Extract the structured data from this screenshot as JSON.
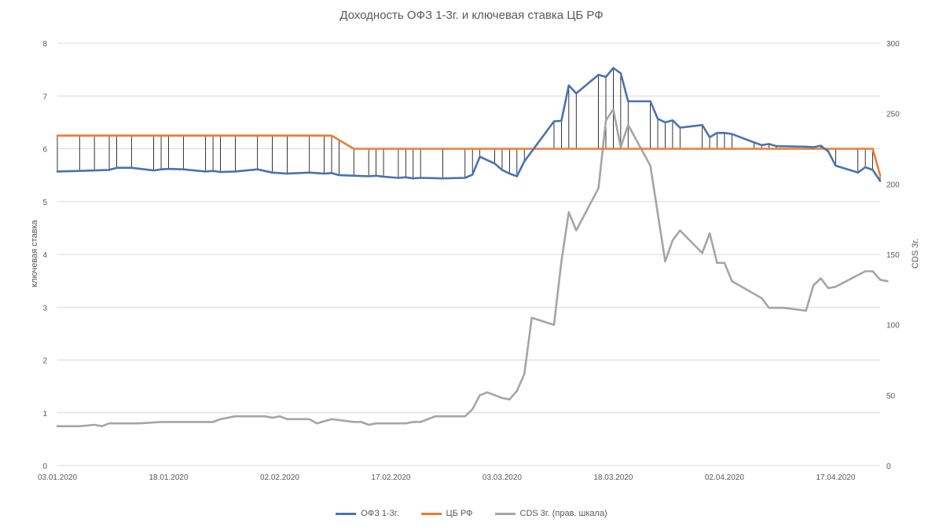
{
  "chart_data": {
    "type": "line",
    "title": "Доходность ОФЗ 1-3г. и ключевая ставка ЦБ РФ",
    "ylabel": "ключевая ставка",
    "y2label": "CDS 3г.",
    "ylim": [
      0,
      8
    ],
    "y2lim": [
      0,
      300
    ],
    "yticks": [
      "0",
      "1",
      "2",
      "3",
      "4",
      "5",
      "6",
      "7",
      "8"
    ],
    "y2ticks": [
      "0",
      "50",
      "100",
      "150",
      "200",
      "250",
      "300"
    ],
    "xticks": [
      "03.01.2020",
      "18.01.2020",
      "02.02.2020",
      "17.02.2020",
      "03.03.2020",
      "18.03.2020",
      "02.04.2020",
      "17.04.2020"
    ],
    "x_start": "03.01.2020",
    "x_end": "23.04.2020",
    "grid": "horizontal",
    "legend_position": "bottom",
    "colors": {
      "ofz": "#4a72b0",
      "cb": "#ed7d31",
      "cds": "#a5a5a5",
      "drop": "#000000",
      "grid": "#d9d9d9"
    },
    "series": [
      {
        "name": "ОФЗ 1-3г.",
        "axis": "left",
        "points": [
          [
            "03.01.2020",
            5.57
          ],
          [
            "06.01.2020",
            5.58
          ],
          [
            "08.01.2020",
            5.59
          ],
          [
            "10.01.2020",
            5.6
          ],
          [
            "11.01.2020",
            5.64
          ],
          [
            "13.01.2020",
            5.64
          ],
          [
            "16.01.2020",
            5.59
          ],
          [
            "17.01.2020",
            5.61
          ],
          [
            "18.01.2020",
            5.62
          ],
          [
            "20.01.2020",
            5.61
          ],
          [
            "23.01.2020",
            5.57
          ],
          [
            "24.01.2020",
            5.58
          ],
          [
            "25.01.2020",
            5.56
          ],
          [
            "27.01.2020",
            5.57
          ],
          [
            "30.01.2020",
            5.61
          ],
          [
            "01.02.2020",
            5.55
          ],
          [
            "03.02.2020",
            5.53
          ],
          [
            "06.02.2020",
            5.55
          ],
          [
            "08.02.2020",
            5.53
          ],
          [
            "09.02.2020",
            5.54
          ],
          [
            "10.02.2020",
            5.5
          ],
          [
            "12.02.2020",
            5.49
          ],
          [
            "14.02.2020",
            5.48
          ],
          [
            "15.02.2020",
            5.49
          ],
          [
            "16.02.2020",
            5.47
          ],
          [
            "18.02.2020",
            5.45
          ],
          [
            "19.02.2020",
            5.46
          ],
          [
            "20.02.2020",
            5.44
          ],
          [
            "21.02.2020",
            5.45
          ],
          [
            "24.02.2020",
            5.44
          ],
          [
            "27.02.2020",
            5.45
          ],
          [
            "28.02.2020",
            5.51
          ],
          [
            "29.02.2020",
            5.85
          ],
          [
            "02.03.2020",
            5.72
          ],
          [
            "03.03.2020",
            5.6
          ],
          [
            "04.03.2020",
            5.53
          ],
          [
            "05.03.2020",
            5.48
          ],
          [
            "06.03.2020",
            5.76
          ],
          [
            "10.03.2020",
            6.52
          ],
          [
            "11.03.2020",
            6.53
          ],
          [
            "12.03.2020",
            7.2
          ],
          [
            "13.03.2020",
            7.05
          ],
          [
            "16.03.2020",
            7.4
          ],
          [
            "17.03.2020",
            7.36
          ],
          [
            "18.03.2020",
            7.53
          ],
          [
            "19.03.2020",
            7.43
          ],
          [
            "20.03.2020",
            6.9
          ],
          [
            "23.03.2020",
            6.9
          ],
          [
            "24.03.2020",
            6.57
          ],
          [
            "25.03.2020",
            6.5
          ],
          [
            "26.03.2020",
            6.54
          ],
          [
            "27.03.2020",
            6.4
          ],
          [
            "30.03.2020",
            6.45
          ],
          [
            "31.03.2020",
            6.22
          ],
          [
            "01.04.2020",
            6.3
          ],
          [
            "02.04.2020",
            6.3
          ],
          [
            "03.04.2020",
            6.28
          ],
          [
            "06.04.2020",
            6.12
          ],
          [
            "07.04.2020",
            6.07
          ],
          [
            "08.04.2020",
            6.09
          ],
          [
            "09.04.2020",
            6.05
          ],
          [
            "13.04.2020",
            6.04
          ],
          [
            "14.04.2020",
            6.03
          ],
          [
            "15.04.2020",
            6.06
          ],
          [
            "16.04.2020",
            5.95
          ],
          [
            "17.04.2020",
            5.68
          ],
          [
            "20.04.2020",
            5.55
          ],
          [
            "21.04.2020",
            5.65
          ],
          [
            "22.04.2020",
            5.6
          ],
          [
            "23.04.2020",
            5.39
          ]
        ]
      },
      {
        "name": "ЦБ РФ",
        "axis": "left",
        "points": [
          [
            "03.01.2020",
            6.25
          ],
          [
            "09.02.2020",
            6.25
          ],
          [
            "12.02.2020",
            6.0
          ],
          [
            "22.04.2020",
            6.0
          ],
          [
            "23.04.2020",
            5.5
          ]
        ]
      },
      {
        "name": "CDS 3г. (прав. шкала)",
        "axis": "right",
        "points": [
          [
            "03.01.2020",
            28
          ],
          [
            "06.01.2020",
            28
          ],
          [
            "08.01.2020",
            29
          ],
          [
            "09.01.2020",
            28
          ],
          [
            "10.01.2020",
            30
          ],
          [
            "13.01.2020",
            30
          ],
          [
            "14.01.2020",
            30
          ],
          [
            "17.01.2020",
            31
          ],
          [
            "20.01.2020",
            31
          ],
          [
            "24.01.2020",
            31
          ],
          [
            "25.01.2020",
            33
          ],
          [
            "27.01.2020",
            35
          ],
          [
            "30.01.2020",
            35
          ],
          [
            "31.01.2020",
            35
          ],
          [
            "01.02.2020",
            34
          ],
          [
            "02.02.2020",
            35
          ],
          [
            "03.02.2020",
            33
          ],
          [
            "06.02.2020",
            33
          ],
          [
            "07.02.2020",
            30
          ],
          [
            "09.02.2020",
            33
          ],
          [
            "12.02.2020",
            31
          ],
          [
            "13.02.2020",
            31
          ],
          [
            "14.02.2020",
            29
          ],
          [
            "15.02.2020",
            30
          ],
          [
            "16.02.2020",
            30
          ],
          [
            "19.02.2020",
            30
          ],
          [
            "20.02.2020",
            31
          ],
          [
            "21.02.2020",
            31
          ],
          [
            "23.02.2020",
            35
          ],
          [
            "27.02.2020",
            35
          ],
          [
            "28.02.2020",
            40
          ],
          [
            "29.02.2020",
            50
          ],
          [
            "01.03.2020",
            52
          ],
          [
            "03.03.2020",
            48
          ],
          [
            "04.03.2020",
            47
          ],
          [
            "05.03.2020",
            53
          ],
          [
            "06.03.2020",
            65
          ],
          [
            "07.03.2020",
            105
          ],
          [
            "10.03.2020",
            100
          ],
          [
            "11.03.2020",
            145
          ],
          [
            "12.03.2020",
            180
          ],
          [
            "13.03.2020",
            167
          ],
          [
            "16.03.2020",
            197
          ],
          [
            "17.03.2020",
            245
          ],
          [
            "18.03.2020",
            253
          ],
          [
            "19.03.2020",
            226
          ],
          [
            "20.03.2020",
            242
          ],
          [
            "23.03.2020",
            213
          ],
          [
            "25.03.2020",
            145
          ],
          [
            "26.03.2020",
            160
          ],
          [
            "27.03.2020",
            167
          ],
          [
            "30.03.2020",
            151
          ],
          [
            "31.03.2020",
            165
          ],
          [
            "01.04.2020",
            144
          ],
          [
            "02.04.2020",
            144
          ],
          [
            "03.04.2020",
            131
          ],
          [
            "07.04.2020",
            119
          ],
          [
            "08.04.2020",
            112
          ],
          [
            "10.04.2020",
            112
          ],
          [
            "13.04.2020",
            110
          ],
          [
            "14.04.2020",
            128
          ],
          [
            "15.04.2020",
            133
          ],
          [
            "16.04.2020",
            126
          ],
          [
            "17.04.2020",
            127
          ],
          [
            "21.04.2020",
            138
          ],
          [
            "22.04.2020",
            138
          ],
          [
            "23.04.2020",
            132
          ],
          [
            "24.04.2020",
            131
          ]
        ]
      }
    ]
  }
}
